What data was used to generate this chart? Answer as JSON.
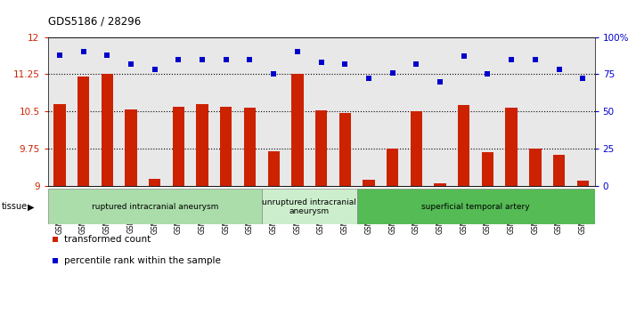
{
  "title": "GDS5186 / 28296",
  "samples": [
    "GSM1306885",
    "GSM1306886",
    "GSM1306887",
    "GSM1306888",
    "GSM1306889",
    "GSM1306890",
    "GSM1306891",
    "GSM1306892",
    "GSM1306893",
    "GSM1306894",
    "GSM1306895",
    "GSM1306896",
    "GSM1306897",
    "GSM1306898",
    "GSM1306899",
    "GSM1306900",
    "GSM1306901",
    "GSM1306902",
    "GSM1306903",
    "GSM1306904",
    "GSM1306905",
    "GSM1306906",
    "GSM1306907"
  ],
  "bar_values": [
    10.65,
    11.2,
    11.25,
    10.54,
    9.13,
    10.6,
    10.65,
    10.6,
    10.57,
    9.7,
    11.25,
    10.53,
    10.47,
    9.12,
    9.75,
    10.5,
    9.05,
    10.63,
    9.68,
    10.57,
    9.75,
    9.63,
    9.1
  ],
  "scatter_values": [
    88,
    90,
    88,
    82,
    78,
    85,
    85,
    85,
    85,
    75,
    90,
    83,
    82,
    72,
    76,
    82,
    70,
    87,
    75,
    85,
    85,
    78,
    72
  ],
  "ylim_left": [
    9,
    12
  ],
  "ylim_right": [
    0,
    100
  ],
  "yticks_left": [
    9,
    9.75,
    10.5,
    11.25,
    12
  ],
  "yticks_right": [
    0,
    25,
    50,
    75,
    100
  ],
  "ytick_labels_right": [
    "0",
    "25",
    "50",
    "75",
    "100%"
  ],
  "hlines": [
    9.75,
    10.5,
    11.25
  ],
  "bar_color": "#CC2200",
  "scatter_color": "#0000CC",
  "tissue_groups": [
    {
      "label": "ruptured intracranial aneurysm",
      "start": 0,
      "end": 9,
      "color": "#AADDAA"
    },
    {
      "label": "unruptured intracranial\naneurysm",
      "start": 9,
      "end": 13,
      "color": "#CCEECC"
    },
    {
      "label": "superficial temporal artery",
      "start": 13,
      "end": 23,
      "color": "#55BB55"
    }
  ],
  "legend_label_bar": "transformed count",
  "legend_label_scatter": "percentile rank within the sample",
  "tissue_label": "tissue",
  "plot_bg": "#E8E8E8",
  "bar_width": 0.5
}
